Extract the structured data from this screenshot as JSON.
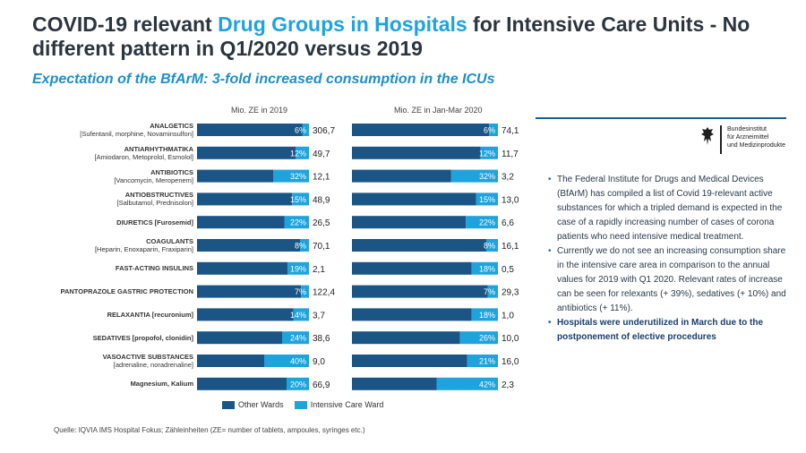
{
  "header": {
    "title_part1": "COVID-19 relevant ",
    "title_accent": "Drug Groups in Hospitals",
    "title_part2": " for Intensive Care Units - No different pattern in Q1/2020 versus 2019",
    "subtitle": "Expectation of the BfArM: 3-fold increased consumption in the ICUs"
  },
  "colors": {
    "other_wards": "#1a5586",
    "icu": "#1fa3dc",
    "accent": "#1fa3dc"
  },
  "chart_data": {
    "type": "bar",
    "orientation": "horizontal",
    "stacked": "100%",
    "categories": [
      {
        "name": "ANALGETICS",
        "sub": "[Sufentanil, morphine, Novaminsulfon]"
      },
      {
        "name": "ANTIARHYTHMATIKA",
        "sub": "[Amiodaron, Metoprolol, Esmolol]"
      },
      {
        "name": "ANTIBIOTICS",
        "sub": "[Vancomycin, Meropenem]"
      },
      {
        "name": "ANTIOBSTRUCTIVES",
        "sub": "[Salbutamol, Prednisolon]"
      },
      {
        "name": "DIURETICS [Furosemid]",
        "sub": ""
      },
      {
        "name": "COAGULANTS",
        "sub": "[Heparin, Enoxaparin, Fraxiparin]"
      },
      {
        "name": "FAST-ACTING INSULINS",
        "sub": ""
      },
      {
        "name": "PANTOPRAZOLE GASTRIC PROTECTION",
        "sub": ""
      },
      {
        "name": "RELAXANTIA [recuronium]",
        "sub": ""
      },
      {
        "name": "SEDATIVES [propofol, clonidin]",
        "sub": ""
      },
      {
        "name": "VASOACTIVE SUBSTANCES",
        "sub": "[adrenaline, noradrenaline]"
      },
      {
        "name": "Magnesium, Kalium",
        "sub": ""
      }
    ],
    "legend": [
      "Other Wards",
      "Intensive Care Ward"
    ],
    "panels": [
      {
        "title": "Mio. ZE in 2019",
        "icu_share_pct": [
          6,
          12,
          32,
          15,
          22,
          8,
          19,
          7,
          14,
          24,
          40,
          20
        ],
        "icu_labels": [
          "6%",
          "12%",
          "32%",
          "15%",
          "22%",
          "8%",
          "19%",
          "7%",
          "14%",
          "24%",
          "40%",
          "20%"
        ],
        "totals": [
          "306,7",
          "49,7",
          "12,1",
          "48,9",
          "26,5",
          "70,1",
          "2,1",
          "122,4",
          "3,7",
          "38,6",
          "9,0",
          "66,9"
        ]
      },
      {
        "title": "Mio. ZE in Jan-Mar 2020",
        "icu_share_pct": [
          6,
          12,
          32,
          15,
          22,
          8,
          18,
          7,
          18,
          26,
          21,
          42
        ],
        "icu_labels": [
          "6%",
          "12%",
          "32%",
          "15%",
          "22%",
          "8%",
          "18%",
          "7%",
          "18%",
          "26%",
          "21%",
          "42%"
        ],
        "totals": [
          "74,1",
          "11,7",
          "3,2",
          "13,0",
          "6,6",
          "16,1",
          "0,5",
          "29,3",
          "1,0",
          "10,0",
          "16,0",
          "2,3"
        ]
      }
    ]
  },
  "logo": {
    "line1": "Bundesinstitut",
    "line2": "für Arzneimittel",
    "line3": "und Medizinprodukte"
  },
  "notes": [
    "The Federal Institute for Drugs and Medical Devices (BfArM) has compiled a list of Covid 19-relevant active substances for which a tripled demand is expected in the case of a rapidly increasing number of cases of corona patients who need intensive medical treatment.",
    "Currently we do not see an increasing consumption share in the intensive care area in comparison to the annual values for 2019 with Q1 2020. Relevant rates of increase can be seen for relexants (+ 39%), sedatives (+ 10%) and antibiotics (+ 11%).",
    "Hospitals were underutilized in March due to the postponement of elective procedures"
  ],
  "source": "Quelle: IQVIA IMS Hospital Fokus; Zähleinheiten (ZE= number of tablets, ampoules, syringes etc.)"
}
